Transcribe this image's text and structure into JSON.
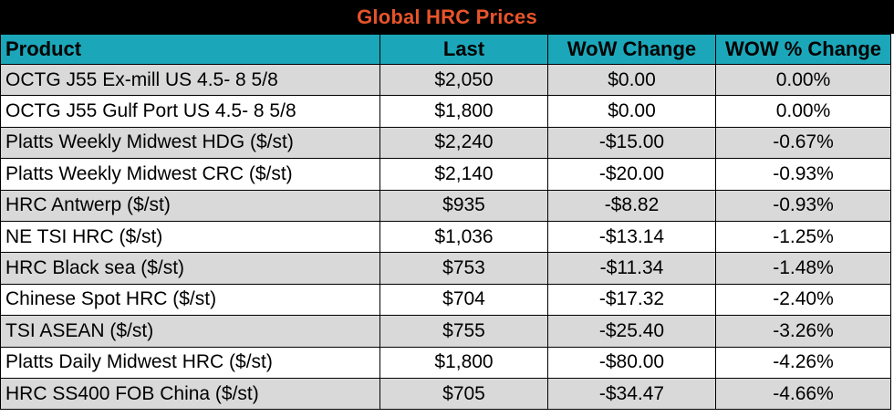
{
  "title": "Global HRC Prices",
  "colors": {
    "title_bg": "#000000",
    "title_text": "#e8542a",
    "header_bg": "#1ba7b9",
    "alt_row_bg": "#d9d9d9"
  },
  "table": {
    "headers": {
      "product": "Product",
      "last": "Last",
      "wow_change": "WoW Change",
      "wow_pct_change": "WOW % Change"
    },
    "rows": [
      {
        "product": "OCTG J55 Ex-mill US 4.5- 8 5/8",
        "last": "$2,050",
        "wow_change": "$0.00",
        "wow_pct_change": "0.00%"
      },
      {
        "product": "OCTG J55 Gulf Port US 4.5- 8 5/8",
        "last": "$1,800",
        "wow_change": "$0.00",
        "wow_pct_change": "0.00%"
      },
      {
        "product": "Platts Weekly Midwest HDG ($/st)",
        "last": "$2,240",
        "wow_change": "-$15.00",
        "wow_pct_change": "-0.67%"
      },
      {
        "product": "Platts Weekly Midwest CRC ($/st)",
        "last": "$2,140",
        "wow_change": "-$20.00",
        "wow_pct_change": "-0.93%"
      },
      {
        "product": "HRC Antwerp ($/st)",
        "last": "$935",
        "wow_change": "-$8.82",
        "wow_pct_change": "-0.93%"
      },
      {
        "product": "NE TSI HRC ($/st)",
        "last": "$1,036",
        "wow_change": "-$13.14",
        "wow_pct_change": "-1.25%"
      },
      {
        "product": "HRC Black sea ($/st)",
        "last": "$753",
        "wow_change": "-$11.34",
        "wow_pct_change": "-1.48%"
      },
      {
        "product": "Chinese Spot HRC ($/st)",
        "last": "$704",
        "wow_change": "-$17.32",
        "wow_pct_change": "-2.40%"
      },
      {
        "product": "TSI ASEAN ($/st)",
        "last": "$755",
        "wow_change": "-$25.40",
        "wow_pct_change": "-3.26%"
      },
      {
        "product": "Platts Daily Midwest HRC ($/st)",
        "last": "$1,800",
        "wow_change": "-$80.00",
        "wow_pct_change": "-4.26%"
      },
      {
        "product": "HRC SS400 FOB China ($/st)",
        "last": "$705",
        "wow_change": "-$34.47",
        "wow_pct_change": "-4.66%"
      }
    ]
  }
}
